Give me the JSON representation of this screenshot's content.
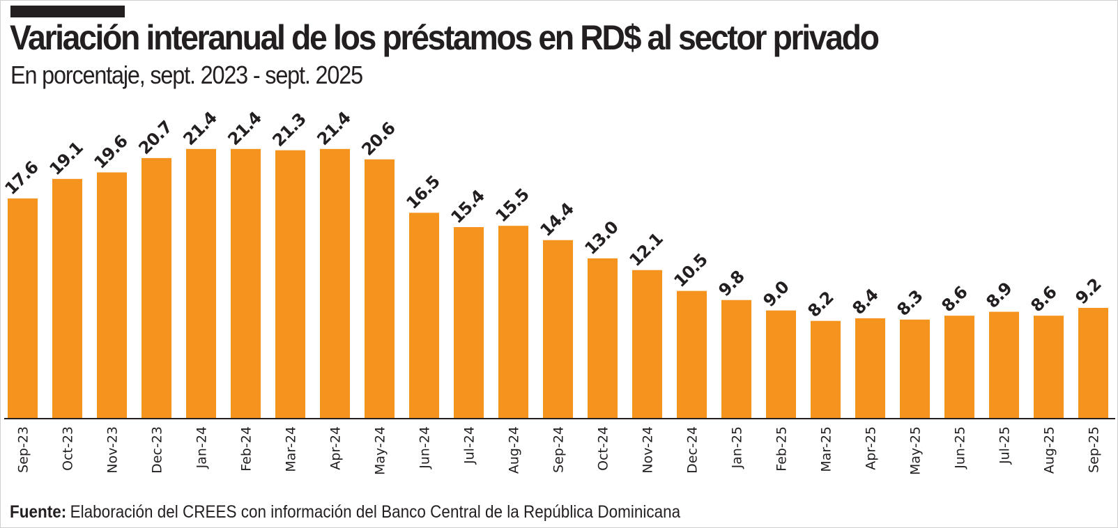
{
  "chart_data": {
    "type": "bar",
    "title": "Variación interanual de los préstamos en RD$ al sector privado",
    "subtitle": "En porcentaje, sept. 2023 - sept. 2025",
    "xlabel": "",
    "ylabel": "",
    "grid": false,
    "legend": "none",
    "bar_color": "#F5931F",
    "ylim": [
      0,
      33
    ],
    "categories": [
      "Sep-23",
      "Oct-23",
      "Nov-23",
      "Dec-23",
      "Jan-24",
      "Feb-24",
      "Mar-24",
      "Apr-24",
      "May-24",
      "Jun-24",
      "Jul-24",
      "Aug-24",
      "Sep-24",
      "Oct-24",
      "Nov-24",
      "Dec-24",
      "Jan-25",
      "Feb-25",
      "Mar-25",
      "Apr-25",
      "May-25",
      "Jun-25",
      "Jul-25",
      "Aug-25",
      "Sep-25"
    ],
    "values": [
      17.6,
      19.1,
      19.6,
      20.7,
      21.4,
      21.4,
      21.3,
      21.4,
      20.6,
      16.5,
      15.4,
      15.5,
      14.4,
      13.0,
      12.1,
      10.5,
      9.8,
      9.0,
      8.2,
      8.4,
      8.3,
      8.6,
      8.9,
      8.6,
      9.2
    ],
    "value_labels": [
      "17.6",
      "19.1",
      "19.6",
      "20.7",
      "21.4",
      "21.4",
      "21.3",
      "21.4",
      "20.6",
      "16.5",
      "15.4",
      "15.5",
      "14.4",
      "13.0",
      "12.1",
      "10.5",
      "9.8",
      "9.0",
      "8.2",
      "8.4",
      "8.3",
      "8.6",
      "8.9",
      "8.6",
      "9.2"
    ]
  },
  "source": {
    "label": "Fuente:",
    "text": "Elaboración del CREES con información del Banco Central de la República Dominicana"
  }
}
